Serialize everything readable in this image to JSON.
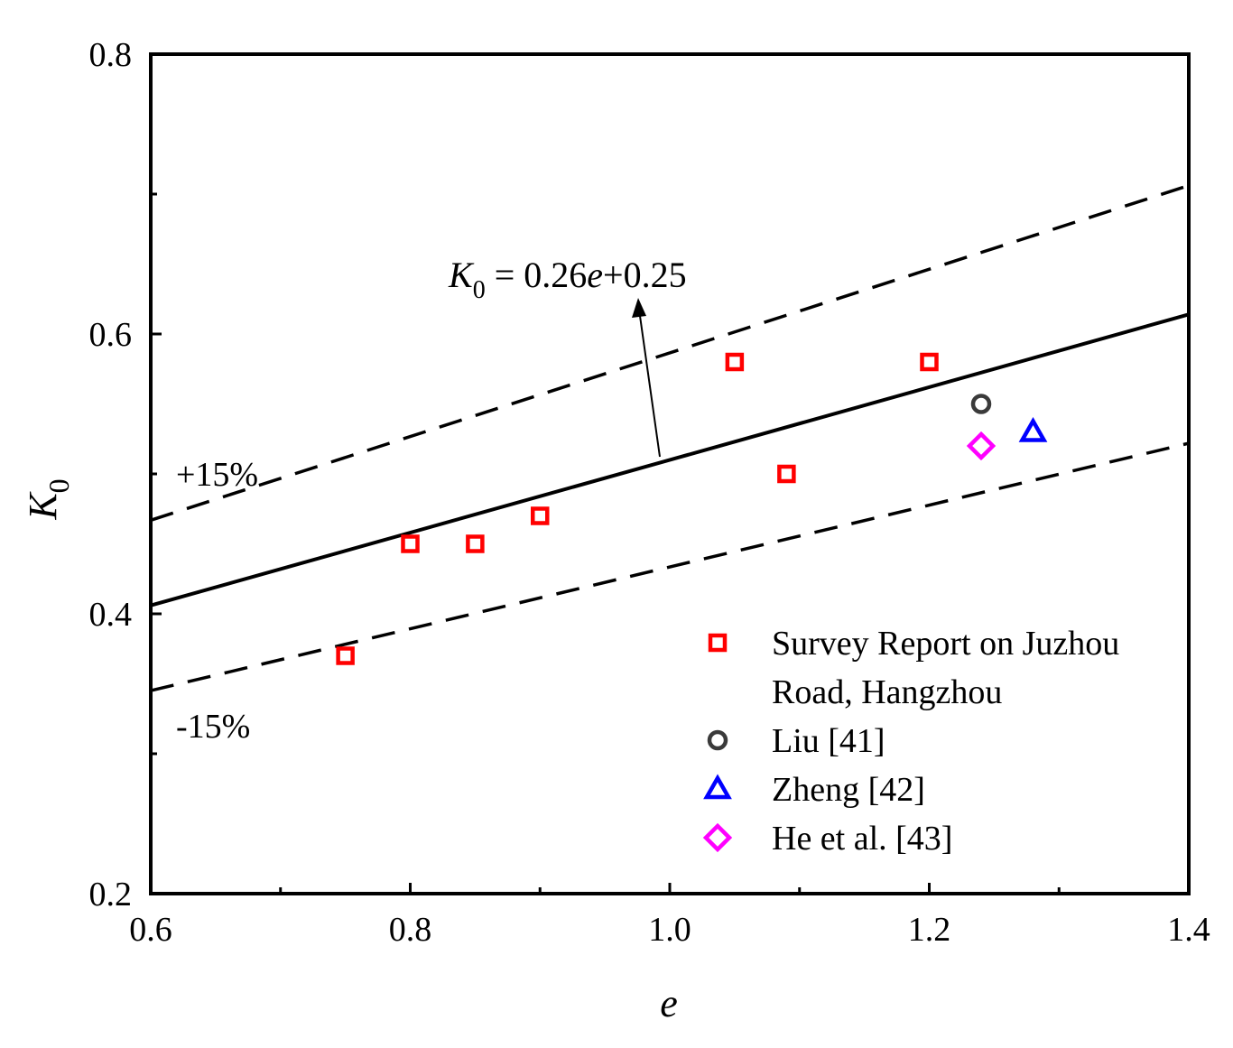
{
  "chart_data": {
    "type": "scatter",
    "title": "",
    "xlabel": "e",
    "ylabel": "K",
    "ylabel_sub": "0",
    "xlim": [
      0.6,
      1.4
    ],
    "ylim": [
      0.2,
      0.8
    ],
    "x_ticks": [
      0.6,
      0.8,
      1.0,
      1.2,
      1.4
    ],
    "x_tick_labels": [
      "0.6",
      "0.8",
      "1.0",
      "1.2",
      "1.4"
    ],
    "y_ticks": [
      0.2,
      0.4,
      0.6,
      0.8
    ],
    "y_tick_labels": [
      "0.2",
      "0.4",
      "0.6",
      "0.8"
    ],
    "grid": false,
    "legend_position": "bottom-right",
    "fit_line": {
      "slope": 0.26,
      "intercept": 0.25,
      "upper_factor": 1.15,
      "lower_factor": 0.85
    },
    "equation": {
      "lhs": "K",
      "lhs_sub": "0",
      "mid": " = 0.26",
      "var": "e",
      "rhs": "+0.25"
    },
    "band_labels": {
      "upper": "+15%",
      "lower": "-15%"
    },
    "series": [
      {
        "name": "Survey Report on Juzhou Road, Hangzhou",
        "legend_lines": [
          "Survey Report on Juzhou",
          "Road, Hangzhou"
        ],
        "marker": "square",
        "color": "#ff0000",
        "points": [
          [
            0.75,
            0.37
          ],
          [
            0.8,
            0.45
          ],
          [
            0.85,
            0.45
          ],
          [
            0.9,
            0.47
          ],
          [
            1.05,
            0.58
          ],
          [
            1.09,
            0.5
          ],
          [
            1.2,
            0.58
          ]
        ]
      },
      {
        "name": "Liu [41]",
        "legend_lines": [
          "Liu [41]"
        ],
        "marker": "circle",
        "color": "#3a3a3a",
        "points": [
          [
            1.24,
            0.55
          ]
        ]
      },
      {
        "name": "Zheng [42]",
        "legend_lines": [
          "Zheng [42]"
        ],
        "marker": "triangle",
        "color": "#0000ff",
        "points": [
          [
            1.28,
            0.53
          ]
        ]
      },
      {
        "name": "He et al. [43]",
        "legend_lines": [
          "He et al. [43]"
        ],
        "marker": "diamond",
        "color": "#ff00ff",
        "points": [
          [
            1.24,
            0.52
          ]
        ]
      }
    ]
  }
}
